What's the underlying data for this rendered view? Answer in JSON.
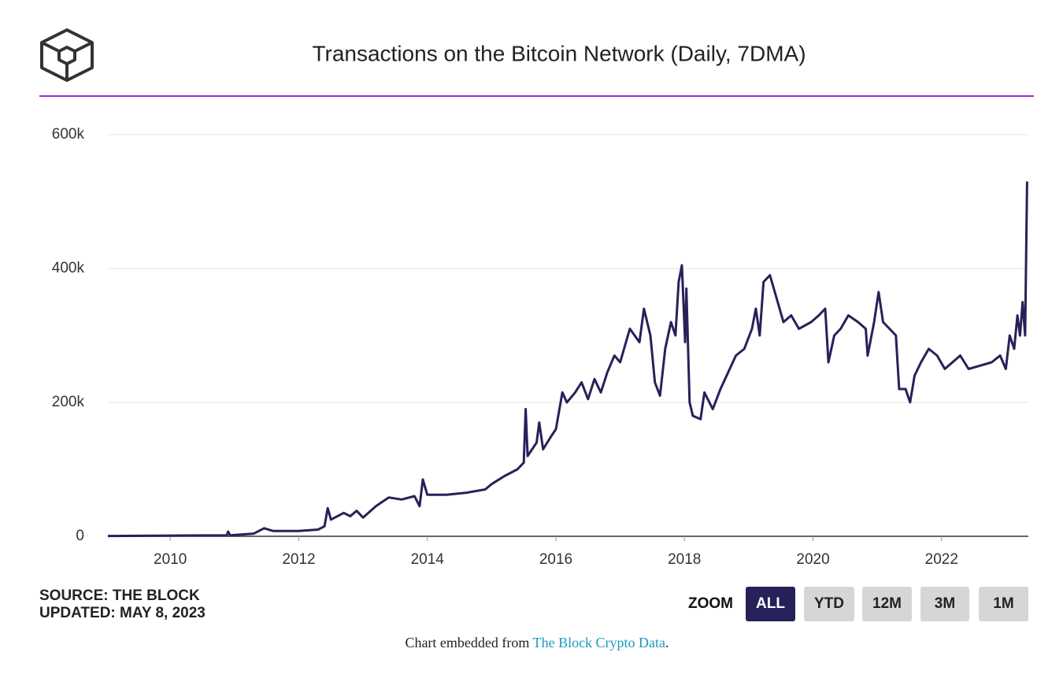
{
  "header": {
    "title": "Transactions on the Bitcoin Network (Daily, 7DMA)"
  },
  "chart_data": {
    "type": "line",
    "color": "#27215a",
    "grid": true,
    "xlim": [
      2009.03,
      2023.35
    ],
    "xticks": [
      2010,
      2012,
      2014,
      2016,
      2018,
      2020,
      2022
    ],
    "ylim": [
      0,
      600000
    ],
    "yticks": [
      0,
      {
        "value": 200000,
        "label": "200k"
      },
      {
        "value": 400000,
        "label": "400k"
      },
      {
        "value": 600000,
        "label": "600k"
      }
    ],
    "x": [
      2009.03,
      2010.0,
      2010.88,
      2010.9,
      2010.93,
      2011.3,
      2011.46,
      2011.6,
      2012.0,
      2012.3,
      2012.4,
      2012.45,
      2012.5,
      2012.7,
      2012.8,
      2012.9,
      2013.0,
      2013.2,
      2013.4,
      2013.6,
      2013.8,
      2013.88,
      2013.93,
      2014.0,
      2014.3,
      2014.6,
      2014.9,
      2015.0,
      2015.2,
      2015.4,
      2015.5,
      2015.53,
      2015.56,
      2015.7,
      2015.74,
      2015.8,
      2015.93,
      2016.0,
      2016.1,
      2016.17,
      2016.3,
      2016.4,
      2016.5,
      2016.6,
      2016.7,
      2016.8,
      2016.91,
      2017.0,
      2017.15,
      2017.3,
      2017.37,
      2017.47,
      2017.54,
      2017.62,
      2017.7,
      2017.79,
      2017.86,
      2017.91,
      2017.96,
      2018.01,
      2018.03,
      2018.08,
      2018.13,
      2018.25,
      2018.31,
      2018.44,
      2018.56,
      2018.8,
      2018.93,
      2019.05,
      2019.11,
      2019.17,
      2019.23,
      2019.33,
      2019.42,
      2019.54,
      2019.66,
      2019.78,
      2019.97,
      2020.09,
      2020.19,
      2020.24,
      2020.33,
      2020.43,
      2020.55,
      2020.7,
      2020.82,
      2020.85,
      2020.95,
      2021.02,
      2021.09,
      2021.19,
      2021.29,
      2021.34,
      2021.44,
      2021.51,
      2021.58,
      2021.68,
      2021.8,
      2021.93,
      2022.05,
      2022.17,
      2022.29,
      2022.42,
      2022.6,
      2022.78,
      2022.91,
      2023.0,
      2023.06,
      2023.13,
      2023.18,
      2023.22,
      2023.26,
      2023.3,
      2023.33
    ],
    "values": [
      500,
      1000,
      1500,
      7000,
      1500,
      4000,
      12000,
      8000,
      8000,
      10000,
      15000,
      42000,
      25000,
      35000,
      30000,
      38000,
      28000,
      45000,
      58000,
      55000,
      60000,
      45000,
      85000,
      62000,
      62000,
      65000,
      70000,
      78000,
      90000,
      100000,
      110000,
      190000,
      120000,
      140000,
      170000,
      130000,
      150000,
      160000,
      215000,
      200000,
      215000,
      230000,
      205000,
      235000,
      215000,
      245000,
      270000,
      260000,
      310000,
      290000,
      340000,
      300000,
      230000,
      210000,
      280000,
      320000,
      300000,
      380000,
      405000,
      290000,
      370000,
      200000,
      180000,
      175000,
      215000,
      190000,
      220000,
      270000,
      280000,
      310000,
      340000,
      300000,
      380000,
      390000,
      360000,
      320000,
      330000,
      310000,
      320000,
      330000,
      340000,
      260000,
      300000,
      310000,
      330000,
      320000,
      310000,
      270000,
      320000,
      365000,
      320000,
      310000,
      300000,
      220000,
      220000,
      200000,
      240000,
      260000,
      280000,
      270000,
      250000,
      260000,
      270000,
      250000,
      255000,
      260000,
      270000,
      250000,
      300000,
      280000,
      330000,
      300000,
      350000,
      300000,
      530000
    ]
  },
  "footer": {
    "source": "SOURCE: THE BLOCK",
    "updated": "UPDATED: MAY 8, 2023",
    "zoom": "ZOOM",
    "buttons": [
      "ALL",
      "YTD",
      "12M",
      "3M",
      "1M"
    ],
    "embed": "Chart embedded from",
    "link": "The Block Crypto Data",
    "end": "."
  }
}
